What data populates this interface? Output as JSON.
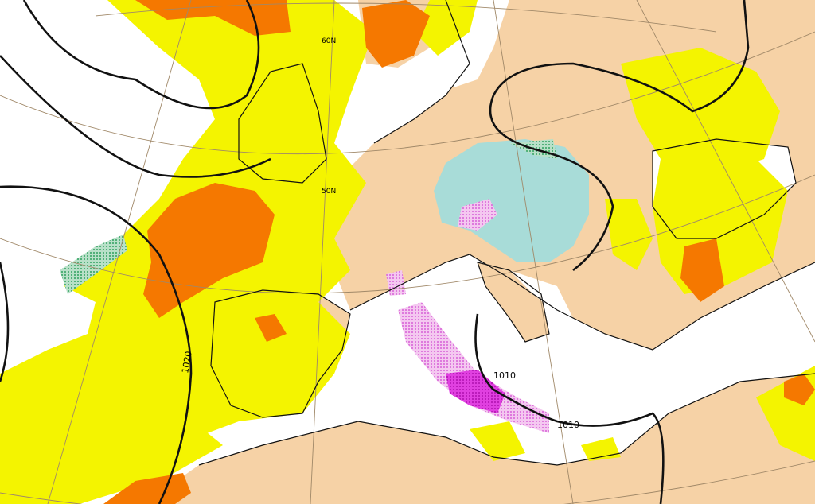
{
  "labels": [
    {
      "text": "60N"
    },
    {
      "text": "50N"
    },
    {
      "text": "1020"
    },
    {
      "text": "1010"
    },
    {
      "text": "1010"
    }
  ]
}
